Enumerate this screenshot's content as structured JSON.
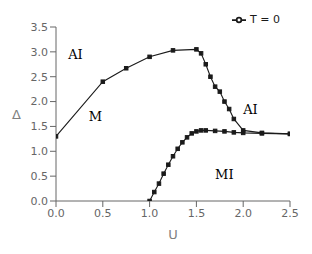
{
  "chart_data": {
    "type": "line",
    "xlabel": "U",
    "ylabel": "Δ",
    "xlim": [
      0.0,
      2.5
    ],
    "ylim": [
      0.0,
      3.5
    ],
    "xticks": [
      {
        "value": 0.0,
        "label": "0.0"
      },
      0.5,
      {
        "value": 1.0,
        "label": "1.0"
      },
      1.5,
      {
        "value": 2.0,
        "label": "2.0"
      },
      2.5
    ],
    "yticks": [
      {
        "value": 0.0,
        "label": "0.0"
      },
      0.5,
      {
        "value": 1.0,
        "label": "1.0"
      },
      1.5,
      {
        "value": 2.0,
        "label": "2.0"
      },
      2.5,
      {
        "value": 3.0,
        "label": "3.0"
      },
      3.5
    ],
    "series": [
      {
        "name": "T = 0",
        "color": "#1a1a1a",
        "marker": "square",
        "x": [
          0.0,
          0.5,
          0.75,
          1.0,
          1.25,
          1.5,
          1.55,
          1.6,
          1.65,
          1.7,
          1.75,
          1.8,
          1.85,
          1.9,
          2.0,
          2.2,
          2.5
        ],
        "values": [
          1.3,
          2.4,
          2.67,
          2.9,
          3.03,
          3.05,
          2.97,
          2.75,
          2.5,
          2.3,
          2.2,
          2.0,
          1.85,
          1.65,
          1.42,
          1.37,
          1.35
        ]
      },
      {
        "color": "#1a1a1a",
        "marker": "square",
        "x": [
          1.0,
          1.05,
          1.1,
          1.15,
          1.2,
          1.25,
          1.3,
          1.35,
          1.4,
          1.45,
          1.5,
          1.55,
          1.6,
          1.7,
          1.8,
          1.9,
          2.0,
          2.2,
          2.5
        ],
        "values": [
          0.0,
          0.18,
          0.35,
          0.55,
          0.73,
          0.9,
          1.05,
          1.18,
          1.28,
          1.36,
          1.4,
          1.42,
          1.42,
          1.41,
          1.4,
          1.38,
          1.37,
          1.36,
          1.35
        ]
      }
    ],
    "annotations": [
      {
        "text": "AI",
        "x": 0.13,
        "y": 2.85
      },
      {
        "text": "M",
        "x": 0.35,
        "y": 1.6
      },
      {
        "text": "AI",
        "x": 2.0,
        "y": 1.75
      },
      {
        "text": "MI",
        "x": 1.7,
        "y": 0.45
      }
    ],
    "legend": "upper right",
    "grid": false
  }
}
